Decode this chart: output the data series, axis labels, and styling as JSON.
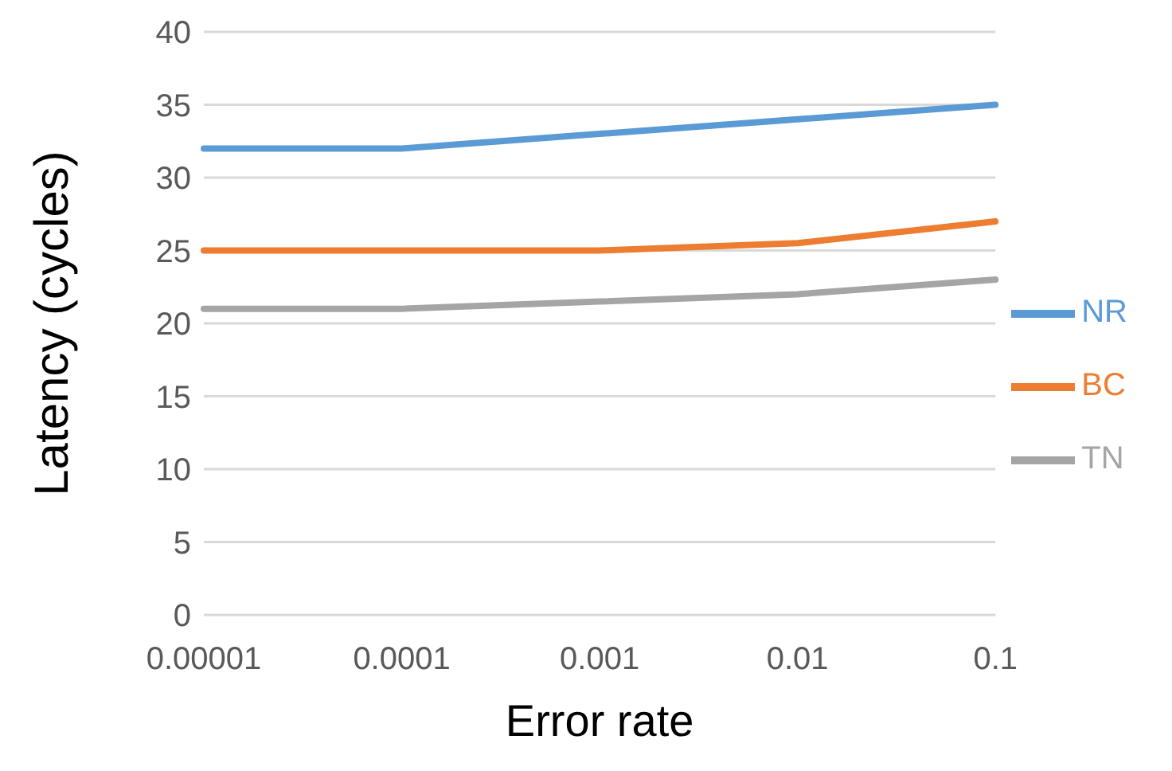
{
  "chart_data": {
    "type": "line",
    "xlabel": "Error rate",
    "ylabel": "Latency (cycles)",
    "categories": [
      "0.00001",
      "0.0001",
      "0.001",
      "0.01",
      "0.1"
    ],
    "series": [
      {
        "name": "NR",
        "color": "#5b9bd5",
        "values": [
          32,
          32,
          33,
          34,
          35
        ]
      },
      {
        "name": "BC",
        "color": "#ed7d31",
        "values": [
          25,
          25,
          25,
          25.5,
          27
        ]
      },
      {
        "name": "TN",
        "color": "#a5a5a5",
        "values": [
          21,
          21,
          21.5,
          22,
          23
        ]
      }
    ],
    "ylim": [
      0,
      40
    ],
    "yticks": [
      0,
      5,
      10,
      15,
      20,
      25,
      30,
      35,
      40
    ],
    "grid": "y",
    "legend": "right",
    "marker": "none",
    "line_style": "solid"
  }
}
